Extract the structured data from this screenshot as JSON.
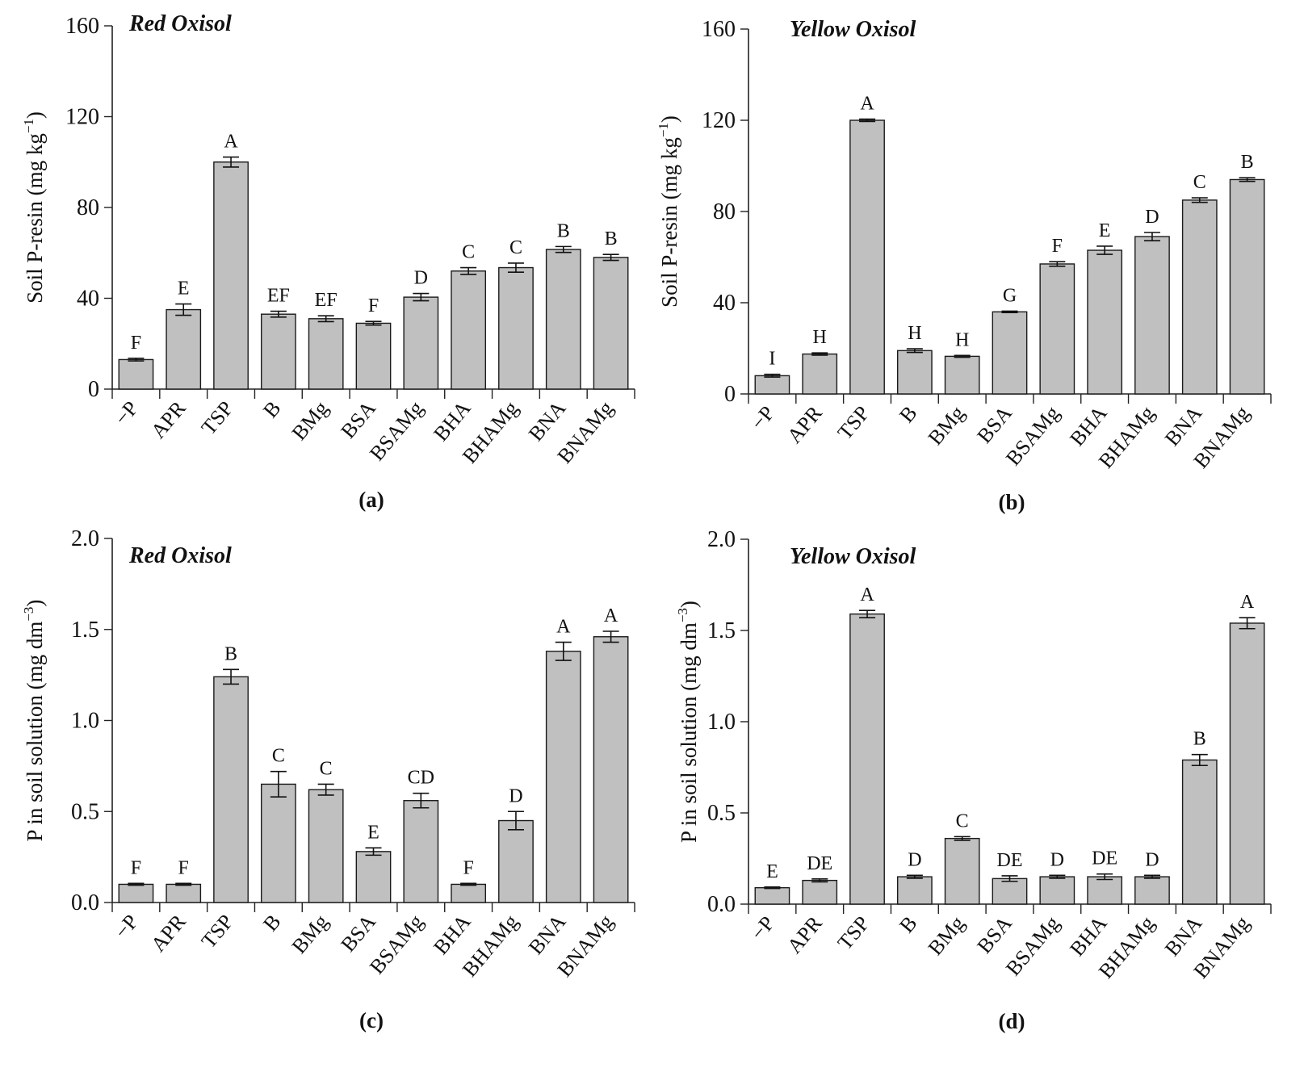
{
  "colors": {
    "bar_fill": "#c0c0c0",
    "bar_stroke": "#1a1a1a",
    "axis": "#222222"
  },
  "chart_data": [
    {
      "id": "a",
      "type": "bar",
      "title": "Red Oxisol",
      "panel_label": "(a)",
      "ylabel": "Soil P-resin (mg kg",
      "ylabel_exp": "−1",
      "ylabel_close": ")",
      "ylim": [
        0,
        160
      ],
      "yticks": [
        0,
        40,
        80,
        120,
        160
      ],
      "ytick_labels": [
        "0",
        "40",
        "80",
        "120",
        "160"
      ],
      "categories": [
        "−P",
        "APR",
        "TSP",
        "B",
        "BMg",
        "BSA",
        "BSAMg",
        "BHA",
        "BHAMg",
        "BNA",
        "BNAMg"
      ],
      "values": [
        13,
        35,
        100,
        33,
        31,
        29,
        40.5,
        52,
        53.5,
        61.5,
        58
      ],
      "errors": [
        0.6,
        2.5,
        2.2,
        1.3,
        1.3,
        0.8,
        1.6,
        1.5,
        2.0,
        1.3,
        1.3
      ],
      "significance": [
        "F",
        "E",
        "A",
        "EF",
        "EF",
        "F",
        "D",
        "C",
        "C",
        "B",
        "B"
      ]
    },
    {
      "id": "b",
      "type": "bar",
      "title": "Yellow Oxisol",
      "panel_label": "(b)",
      "ylabel": "Soil P-resin (mg kg",
      "ylabel_exp": "−1",
      "ylabel_close": ")",
      "ylim": [
        0,
        160
      ],
      "yticks": [
        0,
        40,
        80,
        120,
        160
      ],
      "ytick_labels": [
        "0",
        "40",
        "80",
        "120",
        "160"
      ],
      "categories": [
        "−P",
        "APR",
        "TSP",
        "B",
        "BMg",
        "BSA",
        "BSAMg",
        "BHA",
        "BHAMg",
        "BNA",
        "BNAMg"
      ],
      "values": [
        8,
        17.5,
        120,
        19,
        16.5,
        36,
        57,
        63,
        69,
        85,
        94
      ],
      "errors": [
        0.6,
        0.5,
        0.5,
        0.8,
        0.4,
        0.3,
        1.0,
        1.8,
        1.8,
        1.0,
        0.8
      ],
      "significance": [
        "I",
        "H",
        "A",
        "H",
        "H",
        "G",
        "F",
        "E",
        "D",
        "C",
        "B"
      ]
    },
    {
      "id": "c",
      "type": "bar",
      "title": "Red Oxisol",
      "panel_label": "(c)",
      "ylabel": "P in soil solution (mg dm",
      "ylabel_exp": "−3",
      "ylabel_close": ")",
      "ylim": [
        0,
        2
      ],
      "yticks": [
        0,
        0.5,
        1,
        1.5,
        2
      ],
      "ytick_labels": [
        "0.0",
        "0.5",
        "1.0",
        "1.5",
        "2.0"
      ],
      "categories": [
        "−P",
        "APR",
        "TSP",
        "B",
        "BMg",
        "BSA",
        "BSAMg",
        "BHA",
        "BHAMg",
        "BNA",
        "BNAMg"
      ],
      "values": [
        0.1,
        0.1,
        1.24,
        0.65,
        0.62,
        0.28,
        0.56,
        0.1,
        0.45,
        1.38,
        1.46
      ],
      "errors": [
        0.005,
        0.005,
        0.04,
        0.07,
        0.03,
        0.02,
        0.04,
        0.005,
        0.05,
        0.05,
        0.03
      ],
      "significance": [
        "F",
        "F",
        "B",
        "C",
        "C",
        "E",
        "CD",
        "F",
        "D",
        "A",
        "A"
      ]
    },
    {
      "id": "d",
      "type": "bar",
      "title": "Yellow Oxisol",
      "panel_label": "(d)",
      "ylabel": "P in soil solution (mg dm",
      "ylabel_exp": "−3",
      "ylabel_close": ")",
      "ylim": [
        0,
        2
      ],
      "yticks": [
        0,
        0.5,
        1,
        1.5,
        2
      ],
      "ytick_labels": [
        "0.0",
        "0.5",
        "1.0",
        "1.5",
        "2.0"
      ],
      "categories": [
        "−P",
        "APR",
        "TSP",
        "B",
        "BMg",
        "BSA",
        "BSAMg",
        "BHA",
        "BHAMg",
        "BNA",
        "BNAMg"
      ],
      "values": [
        0.09,
        0.13,
        1.59,
        0.15,
        0.36,
        0.14,
        0.15,
        0.15,
        0.15,
        0.79,
        1.54
      ],
      "errors": [
        0.004,
        0.008,
        0.02,
        0.008,
        0.01,
        0.015,
        0.008,
        0.015,
        0.008,
        0.03,
        0.03
      ],
      "significance": [
        "E",
        "DE",
        "A",
        "D",
        "C",
        "DE",
        "D",
        "DE",
        "D",
        "B",
        "A"
      ]
    }
  ]
}
